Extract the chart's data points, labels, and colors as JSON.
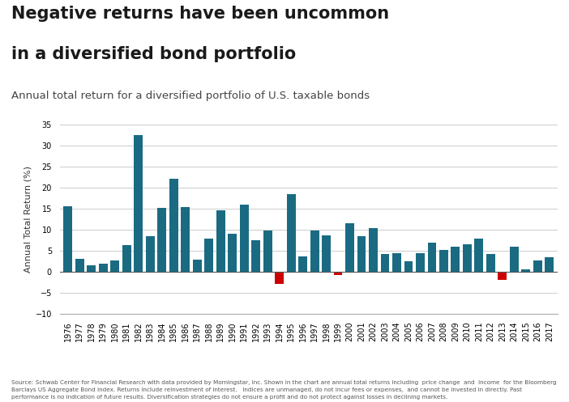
{
  "title_line1": "Negative returns have been uncommon",
  "title_line2": "in a diversified bond portfolio",
  "subtitle": "Annual total return for a diversified portfolio of U.S. taxable bonds",
  "ylabel": "Annual Total Return (%)",
  "footnote1": "Source: Schwab Center for Financial Research with data provided by Morningstar, Inc. Shown in the chart are annual total returns including  price change  and  income  for the Bloomberg",
  "footnote2": "Barclays US Aggregate Bond Index. Returns include reinvestment of interest.   Indices are unmanaged, do not incur fees or expenses,  and cannot be invested in directly. Past",
  "footnote3": "performance is no indication of future results. Diversification strategies do not ensure a profit and do not protect against losses in declining markets.",
  "years": [
    1976,
    1977,
    1978,
    1979,
    1980,
    1981,
    1982,
    1983,
    1984,
    1985,
    1986,
    1987,
    1988,
    1989,
    1990,
    1991,
    1992,
    1993,
    1994,
    1995,
    1996,
    1997,
    1998,
    1999,
    2000,
    2001,
    2002,
    2003,
    2004,
    2005,
    2006,
    2007,
    2008,
    2009,
    2010,
    2011,
    2012,
    2013,
    2014,
    2015,
    2016,
    2017
  ],
  "values": [
    15.6,
    3.0,
    1.4,
    1.9,
    2.7,
    6.3,
    32.6,
    8.4,
    15.1,
    22.1,
    15.3,
    2.8,
    7.9,
    14.5,
    9.0,
    16.0,
    7.4,
    9.8,
    -2.9,
    18.5,
    3.6,
    9.7,
    8.7,
    -0.8,
    11.6,
    8.4,
    10.3,
    4.1,
    4.3,
    2.4,
    4.3,
    6.9,
    5.2,
    5.9,
    6.5,
    7.8,
    4.2,
    -2.0,
    5.9,
    0.5,
    2.6,
    3.5
  ],
  "positive_color": "#1a6b82",
  "negative_color": "#cc0000",
  "background_color": "#ffffff",
  "ylim": [
    -10,
    35
  ],
  "yticks": [
    -10,
    -5,
    0,
    5,
    10,
    15,
    20,
    25,
    30,
    35
  ],
  "grid_color": "#cccccc",
  "title_fontsize": 15,
  "subtitle_fontsize": 9.5,
  "axis_label_fontsize": 8,
  "tick_fontsize": 7,
  "footnote_fontsize": 5.2
}
